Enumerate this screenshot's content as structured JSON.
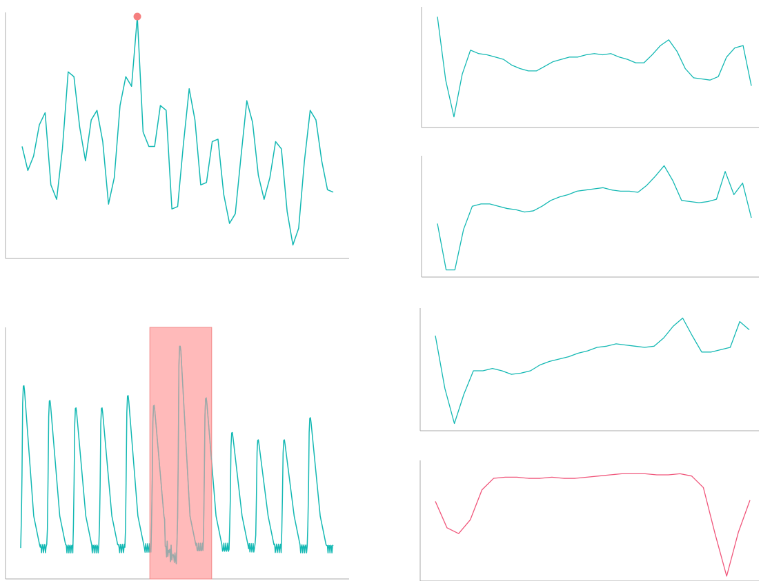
{
  "colors": {
    "series": "#13b8b3",
    "normal_series": "#f0557a",
    "anomaly_marker": "#f57f7f",
    "anomaly_region": "#ff9c9c",
    "anomaly_region_line": "#9aa9a9",
    "axis": "#a8a8a8"
  },
  "chart_data": [
    {
      "id": "point-anomaly",
      "type": "line",
      "title": "",
      "xlabel": "",
      "ylabel": "",
      "grid": false,
      "x_range": [
        0,
        100
      ],
      "ylim": [
        0,
        1
      ],
      "series": [
        {
          "values": [
            0.46,
            0.36,
            0.42,
            0.55,
            0.6,
            0.3,
            0.24,
            0.45,
            0.77,
            0.75,
            0.54,
            0.4,
            0.57,
            0.61,
            0.48,
            0.22,
            0.33,
            0.63,
            0.75,
            0.71,
            1.0,
            0.52,
            0.46,
            0.46,
            0.63,
            0.61,
            0.2,
            0.21,
            0.47,
            0.7,
            0.57,
            0.3,
            0.31,
            0.48,
            0.49,
            0.26,
            0.14,
            0.18,
            0.42,
            0.65,
            0.56,
            0.34,
            0.24,
            0.33,
            0.48,
            0.45,
            0.19,
            0.05,
            0.12,
            0.4,
            0.61,
            0.57,
            0.4,
            0.28,
            0.27
          ]
        }
      ],
      "anomalies": [
        {
          "index": 20,
          "value": 1.0
        }
      ]
    },
    {
      "id": "collective-anomaly",
      "type": "line",
      "title": "",
      "xlabel": "",
      "ylabel": "",
      "grid": false,
      "x_range": [
        0,
        100
      ],
      "ylim": [
        0,
        1
      ],
      "cycle_peaks": [
        0.77,
        0.71,
        0.68,
        0.68,
        0.73,
        0.69,
        0.94,
        0.72,
        0.58,
        0.55,
        0.55,
        0.64
      ],
      "anomaly_region": {
        "x_start": 42,
        "x_end": 60
      },
      "series_summary": {
        "min": 0.05,
        "max": 0.94
      }
    },
    {
      "id": "context-top",
      "type": "line",
      "title": "",
      "grid": false,
      "ylim": [
        0,
        1
      ],
      "series": [
        {
          "values": [
            0.95,
            0.4,
            0.08,
            0.45,
            0.66,
            0.63,
            0.62,
            0.6,
            0.58,
            0.53,
            0.5,
            0.48,
            0.48,
            0.52,
            0.56,
            0.58,
            0.6,
            0.6,
            0.62,
            0.63,
            0.62,
            0.63,
            0.6,
            0.58,
            0.55,
            0.55,
            0.62,
            0.7,
            0.75,
            0.65,
            0.5,
            0.42,
            0.41,
            0.4,
            0.43,
            0.6,
            0.68,
            0.7,
            0.35
          ]
        }
      ]
    },
    {
      "id": "context-middle",
      "type": "line",
      "title": "",
      "grid": false,
      "ylim": [
        0,
        1
      ],
      "series": [
        {
          "values": [
            0.45,
            0.05,
            0.05,
            0.4,
            0.6,
            0.62,
            0.62,
            0.6,
            0.58,
            0.57,
            0.55,
            0.56,
            0.6,
            0.65,
            0.68,
            0.7,
            0.73,
            0.74,
            0.75,
            0.76,
            0.74,
            0.73,
            0.73,
            0.72,
            0.78,
            0.86,
            0.95,
            0.82,
            0.65,
            0.64,
            0.63,
            0.64,
            0.66,
            0.9,
            0.7,
            0.8,
            0.5
          ]
        }
      ]
    },
    {
      "id": "context-bottom",
      "type": "line",
      "title": "",
      "grid": false,
      "ylim": [
        0,
        1
      ],
      "series": [
        {
          "values": [
            0.8,
            0.35,
            0.05,
            0.3,
            0.5,
            0.5,
            0.52,
            0.5,
            0.47,
            0.48,
            0.5,
            0.55,
            0.58,
            0.6,
            0.62,
            0.65,
            0.67,
            0.7,
            0.71,
            0.73,
            0.72,
            0.71,
            0.7,
            0.71,
            0.78,
            0.88,
            0.95,
            0.8,
            0.66,
            0.66,
            0.68,
            0.7,
            0.92,
            0.85
          ]
        }
      ]
    },
    {
      "id": "context-normal",
      "type": "line",
      "title": "",
      "grid": false,
      "ylim": [
        0,
        1
      ],
      "series": [
        {
          "values": [
            0.68,
            0.45,
            0.4,
            0.52,
            0.78,
            0.88,
            0.89,
            0.89,
            0.88,
            0.88,
            0.89,
            0.88,
            0.88,
            0.89,
            0.9,
            0.91,
            0.92,
            0.92,
            0.92,
            0.91,
            0.91,
            0.92,
            0.9,
            0.8,
            0.4,
            0.03,
            0.41,
            0.69
          ]
        }
      ]
    }
  ]
}
